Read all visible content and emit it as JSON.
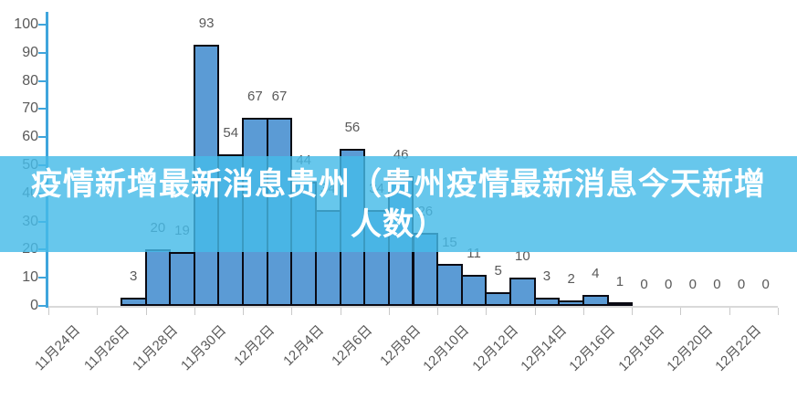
{
  "banner": {
    "title": "疫情新增最新消息贵州（贵州疫情最新消息今天新增人数）",
    "bg_color": "#45BBE8",
    "bg_opacity": 0.82,
    "text_color": "#FFFFFF"
  },
  "chart_data": {
    "type": "bar",
    "title": "",
    "xlabel": "",
    "ylabel": "",
    "n_categories": 30,
    "x_tick_labels": [
      "11月24日",
      "11月26日",
      "11月28日",
      "11月30日",
      "12月2日",
      "12月4日",
      "12月6日",
      "12月8日",
      "12月10日",
      "12月12日",
      "12月14日",
      "12月16日",
      "12月18日",
      "12月20日",
      "12月22日"
    ],
    "x_tick_label_every": 2,
    "values": [
      null,
      null,
      null,
      3,
      20,
      19,
      93,
      54,
      67,
      67,
      44,
      34,
      56,
      34,
      46,
      26,
      15,
      11,
      5,
      10,
      3,
      2,
      4,
      1,
      0,
      0,
      0,
      0,
      0,
      0
    ],
    "data_labels": [
      "",
      "",
      "",
      "3",
      "20",
      "19",
      "93",
      "54",
      "67",
      "67",
      "44",
      "34",
      "56",
      "34",
      "46",
      "26",
      "15",
      "11",
      "5",
      "10",
      "3",
      "2",
      "4",
      "1",
      "0",
      "0",
      "0",
      "0",
      "0",
      "0"
    ],
    "y_ticks": [
      0,
      10,
      20,
      30,
      40,
      50,
      60,
      70,
      80,
      90,
      100
    ],
    "ylim": [
      0,
      100
    ],
    "grid": false,
    "legend": null,
    "colors": {
      "bar_fill": "#5B9BD5",
      "bar_border": "#0A0A14",
      "y_axis": "#3FA5DC",
      "tick_label": "#595959",
      "x_axis_line": "#D9D9D9"
    }
  }
}
